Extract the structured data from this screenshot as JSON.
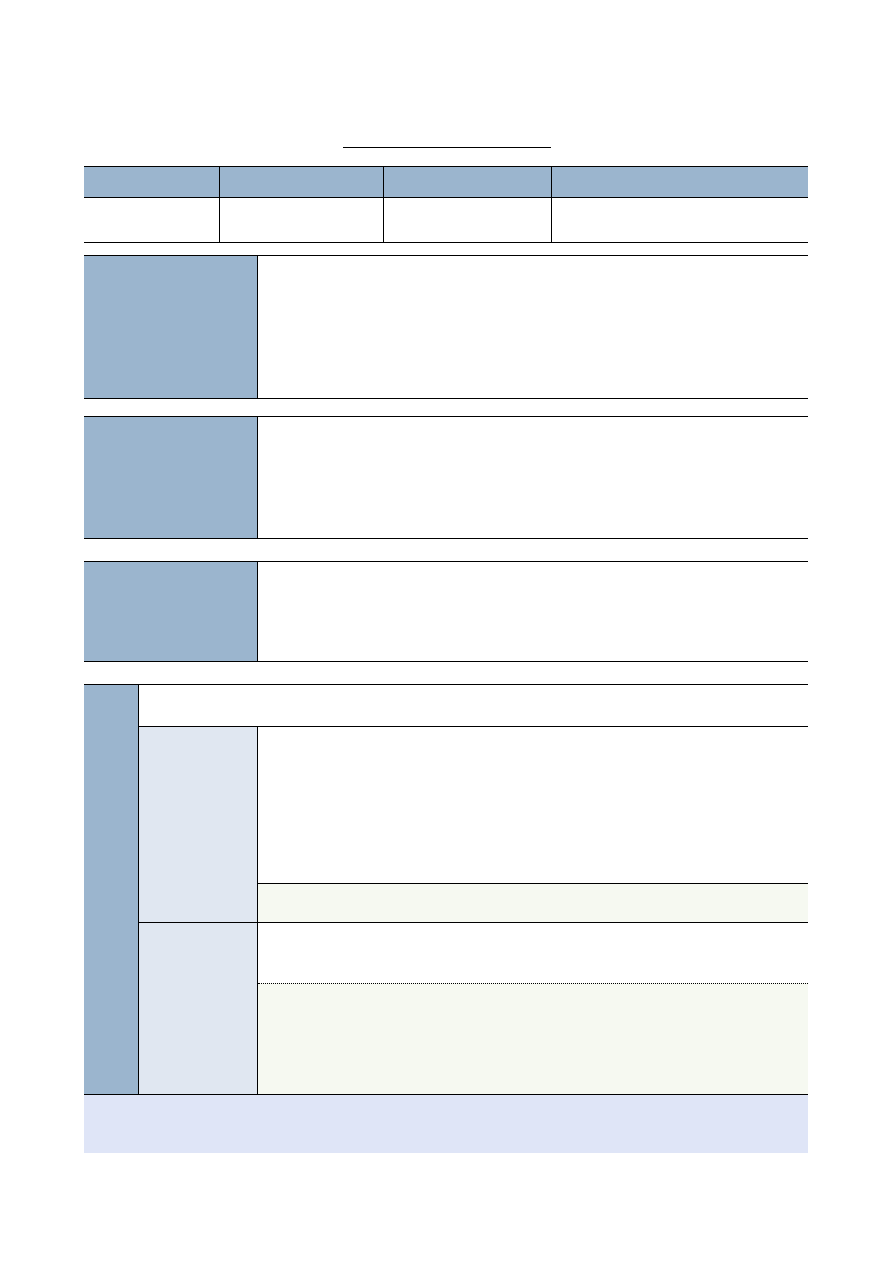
{
  "colors": {
    "header_blue": "#9bb5ce",
    "sub_label_blue": "#e0e7f1",
    "note_green": "#f6f9f1",
    "footer_lavender": "#dfe5f7",
    "rule": "#000000"
  },
  "title": "",
  "info_table": {
    "headers": [
      "",
      "",
      "",
      ""
    ],
    "values": [
      "",
      "",
      "",
      ""
    ]
  },
  "sections": [
    {
      "label": "",
      "content": ""
    },
    {
      "label": "",
      "content": ""
    },
    {
      "label": "",
      "content": ""
    }
  ],
  "group": {
    "label": "",
    "header": "",
    "items": [
      {
        "label": "",
        "content": "",
        "note": ""
      },
      {
        "label": "",
        "content": "",
        "note": ""
      }
    ]
  },
  "footer": ""
}
